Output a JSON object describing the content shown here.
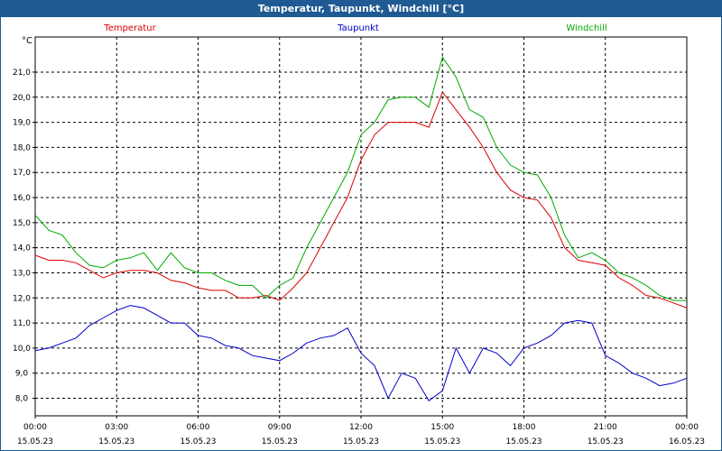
{
  "title": "Temperatur, Taupunkt, Windchill [°C]",
  "chart_data": {
    "type": "line",
    "unit_label": "°C",
    "ylim": [
      7.3,
      22.4
    ],
    "y_ticks": [
      "8,0",
      "9,0",
      "10,0",
      "11,0",
      "12,0",
      "13,0",
      "14,0",
      "15,0",
      "16,0",
      "17,0",
      "18,0",
      "19,0",
      "20,0",
      "21,0"
    ],
    "y_tick_values": [
      8,
      9,
      10,
      11,
      12,
      13,
      14,
      15,
      16,
      17,
      18,
      19,
      20,
      21
    ],
    "x_ticks": [
      {
        "time": "00:00",
        "date": "15.05.23"
      },
      {
        "time": "03:00",
        "date": "15.05.23"
      },
      {
        "time": "06:00",
        "date": "15.05.23"
      },
      {
        "time": "09:00",
        "date": "15.05.23"
      },
      {
        "time": "12:00",
        "date": "15.05.23"
      },
      {
        "time": "15:00",
        "date": "15.05.23"
      },
      {
        "time": "18:00",
        "date": "15.05.23"
      },
      {
        "time": "21:00",
        "date": "15.05.23"
      },
      {
        "time": "00:00",
        "date": "16.05.23"
      }
    ],
    "x_range_hours": [
      0,
      24
    ],
    "grid": true,
    "series": [
      {
        "name": "Temperatur",
        "color": "#dd0000",
        "points": [
          [
            0,
            13.7
          ],
          [
            0.5,
            13.5
          ],
          [
            1,
            13.5
          ],
          [
            1.5,
            13.4
          ],
          [
            2,
            13.1
          ],
          [
            2.5,
            12.8
          ],
          [
            3,
            13.0
          ],
          [
            3.5,
            13.1
          ],
          [
            4,
            13.1
          ],
          [
            4.5,
            13.0
          ],
          [
            5,
            12.7
          ],
          [
            5.5,
            12.6
          ],
          [
            6,
            12.4
          ],
          [
            6.5,
            12.3
          ],
          [
            7,
            12.3
          ],
          [
            7.5,
            12.0
          ],
          [
            8,
            12.0
          ],
          [
            8.5,
            12.1
          ],
          [
            9,
            11.9
          ],
          [
            9.5,
            12.4
          ],
          [
            10,
            13.0
          ],
          [
            10.5,
            14.0
          ],
          [
            11,
            15.0
          ],
          [
            11.5,
            16.0
          ],
          [
            12,
            17.5
          ],
          [
            12.5,
            18.5
          ],
          [
            13,
            19.0
          ],
          [
            13.5,
            19.0
          ],
          [
            14,
            19.0
          ],
          [
            14.5,
            18.8
          ],
          [
            15,
            20.2
          ],
          [
            15.5,
            19.5
          ],
          [
            16,
            18.8
          ],
          [
            16.5,
            18.0
          ],
          [
            17,
            17.0
          ],
          [
            17.5,
            16.3
          ],
          [
            18,
            16.0
          ],
          [
            18.5,
            15.9
          ],
          [
            19,
            15.2
          ],
          [
            19.5,
            14.0
          ],
          [
            20,
            13.5
          ],
          [
            20.5,
            13.4
          ],
          [
            21,
            13.3
          ],
          [
            21.5,
            12.8
          ],
          [
            22,
            12.5
          ],
          [
            22.5,
            12.1
          ],
          [
            23,
            12.0
          ],
          [
            23.5,
            11.8
          ],
          [
            24,
            11.6
          ]
        ]
      },
      {
        "name": "Taupunkt",
        "color": "#0000cc",
        "points": [
          [
            0,
            9.9
          ],
          [
            0.5,
            10.0
          ],
          [
            1,
            10.2
          ],
          [
            1.5,
            10.4
          ],
          [
            2,
            10.9
          ],
          [
            2.5,
            11.2
          ],
          [
            3,
            11.5
          ],
          [
            3.5,
            11.7
          ],
          [
            4,
            11.6
          ],
          [
            4.5,
            11.3
          ],
          [
            5,
            11.0
          ],
          [
            5.5,
            11.0
          ],
          [
            6,
            10.5
          ],
          [
            6.5,
            10.4
          ],
          [
            7,
            10.1
          ],
          [
            7.5,
            10.0
          ],
          [
            8,
            9.7
          ],
          [
            8.5,
            9.6
          ],
          [
            9,
            9.5
          ],
          [
            9.5,
            9.8
          ],
          [
            10,
            10.2
          ],
          [
            10.5,
            10.4
          ],
          [
            11,
            10.5
          ],
          [
            11.5,
            10.8
          ],
          [
            12,
            9.8
          ],
          [
            12.5,
            9.3
          ],
          [
            13,
            8.0
          ],
          [
            13.5,
            9.0
          ],
          [
            14,
            8.8
          ],
          [
            14.5,
            7.9
          ],
          [
            15,
            8.3
          ],
          [
            15.5,
            10.0
          ],
          [
            16,
            9.0
          ],
          [
            16.5,
            10.0
          ],
          [
            17,
            9.8
          ],
          [
            17.5,
            9.3
          ],
          [
            18,
            10.0
          ],
          [
            18.5,
            10.2
          ],
          [
            19,
            10.5
          ],
          [
            19.5,
            11.0
          ],
          [
            20,
            11.1
          ],
          [
            20.5,
            11.0
          ],
          [
            21,
            9.7
          ],
          [
            21.5,
            9.4
          ],
          [
            22,
            9.0
          ],
          [
            22.5,
            8.8
          ],
          [
            23,
            8.5
          ],
          [
            23.5,
            8.6
          ],
          [
            24,
            8.8
          ]
        ]
      },
      {
        "name": "Windchill",
        "color": "#00aa00",
        "points": [
          [
            0,
            15.3
          ],
          [
            0.5,
            14.7
          ],
          [
            1,
            14.5
          ],
          [
            1.5,
            13.8
          ],
          [
            2,
            13.3
          ],
          [
            2.5,
            13.2
          ],
          [
            3,
            13.5
          ],
          [
            3.5,
            13.6
          ],
          [
            4,
            13.8
          ],
          [
            4.5,
            13.1
          ],
          [
            5,
            13.8
          ],
          [
            5.5,
            13.2
          ],
          [
            6,
            13.0
          ],
          [
            6.5,
            13.0
          ],
          [
            7,
            12.7
          ],
          [
            7.5,
            12.5
          ],
          [
            8,
            12.5
          ],
          [
            8.5,
            12.0
          ],
          [
            9,
            12.5
          ],
          [
            9.5,
            12.8
          ],
          [
            10,
            14.0
          ],
          [
            10.5,
            15.0
          ],
          [
            11,
            16.0
          ],
          [
            11.5,
            17.0
          ],
          [
            12,
            18.5
          ],
          [
            12.5,
            19.0
          ],
          [
            13,
            19.9
          ],
          [
            13.5,
            20.0
          ],
          [
            14,
            20.0
          ],
          [
            14.5,
            19.6
          ],
          [
            15,
            21.6
          ],
          [
            15.5,
            20.8
          ],
          [
            16,
            19.5
          ],
          [
            16.5,
            19.2
          ],
          [
            17,
            18.0
          ],
          [
            17.5,
            17.3
          ],
          [
            18,
            17.0
          ],
          [
            18.5,
            16.9
          ],
          [
            19,
            16.0
          ],
          [
            19.5,
            14.5
          ],
          [
            20,
            13.6
          ],
          [
            20.5,
            13.8
          ],
          [
            21,
            13.5
          ],
          [
            21.5,
            13.0
          ],
          [
            22,
            12.8
          ],
          [
            22.5,
            12.5
          ],
          [
            23,
            12.1
          ],
          [
            23.5,
            11.9
          ],
          [
            24,
            11.9
          ]
        ]
      }
    ]
  }
}
